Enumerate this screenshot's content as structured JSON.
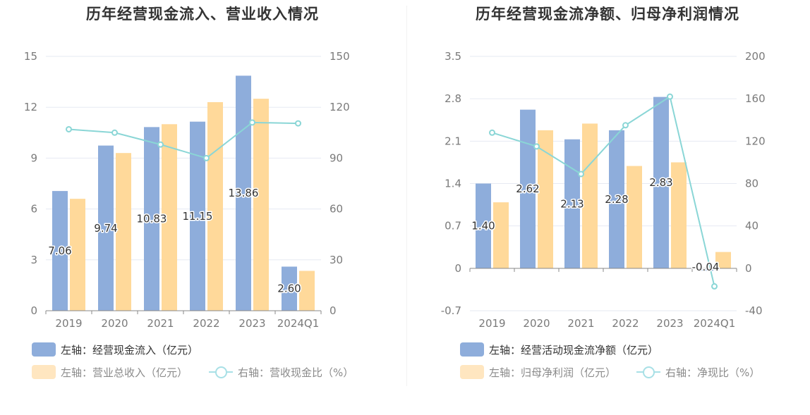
{
  "colors": {
    "bar1": "#8eaddb",
    "bar2": "#ffd99a",
    "bar2_legend": "#ffe6c0",
    "line": "#8ad6d6",
    "grid": "#e6eaf2",
    "axis": "#888888"
  },
  "chart_data": [
    {
      "type": "bar",
      "title": "历年经营现金流入、营业收入情况",
      "categories": [
        "2019",
        "2020",
        "2021",
        "2022",
        "2023",
        "2024Q1"
      ],
      "left_ticks": [
        "0",
        "3",
        "6",
        "9",
        "12",
        "15"
      ],
      "right_ticks": [
        "0",
        "30",
        "60",
        "90",
        "120",
        "150"
      ],
      "left_axis": {
        "min": 0,
        "max": 15
      },
      "right_axis": {
        "min": 0,
        "max": 150
      },
      "grid": true,
      "series": [
        {
          "name": "左轴：经营现金流入（亿元）",
          "axis": "left",
          "kind": "bar",
          "values": [
            7.06,
            9.74,
            10.83,
            11.15,
            13.86,
            2.6
          ],
          "labels": [
            "7.06",
            "9.74",
            "10.83",
            "11.15",
            "13.86",
            "2.60"
          ]
        },
        {
          "name": "左轴：营业总收入（亿元）",
          "axis": "left",
          "kind": "bar",
          "values": [
            6.6,
            9.3,
            11.0,
            12.3,
            12.5,
            2.35
          ]
        },
        {
          "name": "右轴：营收现金比（%）",
          "axis": "right",
          "kind": "line",
          "values": [
            107,
            105,
            98,
            90,
            111,
            110.5
          ]
        }
      ],
      "legend": [
        "左轴：经营现金流入（亿元）",
        "左轴：营业总收入（亿元）",
        "右轴：营收现金比（%）"
      ]
    },
    {
      "type": "bar",
      "title": "历年经营现金流净额、归母净利润情况",
      "categories": [
        "2019",
        "2020",
        "2021",
        "2022",
        "2023",
        "2024Q1"
      ],
      "left_ticks": [
        "-0.7",
        "0",
        "0.7",
        "1.4",
        "2.1",
        "2.8",
        "3.5"
      ],
      "right_ticks": [
        "-40",
        "0",
        "40",
        "80",
        "120",
        "160",
        "200"
      ],
      "left_axis": {
        "min": -0.7,
        "max": 3.5
      },
      "right_axis": {
        "min": -40,
        "max": 200
      },
      "grid": true,
      "series": [
        {
          "name": "左轴：经营活动现金流净额（亿元）",
          "axis": "left",
          "kind": "bar",
          "values": [
            1.4,
            2.62,
            2.13,
            2.28,
            2.83,
            -0.04
          ],
          "labels": [
            "1.40",
            "2.62",
            "2.13",
            "2.28",
            "2.83",
            "-0.04"
          ]
        },
        {
          "name": "左轴：归母净利润（亿元）",
          "axis": "left",
          "kind": "bar",
          "values": [
            1.09,
            2.28,
            2.39,
            1.69,
            1.75,
            0.27
          ]
        },
        {
          "name": "右轴：净现比（%）",
          "axis": "right",
          "kind": "line",
          "values": [
            128,
            115,
            89,
            135,
            162,
            -17
          ]
        }
      ],
      "legend": [
        "左轴：经营活动现金流净额（亿元）",
        "左轴：归母净利润（亿元）",
        "右轴：净现比（%）"
      ]
    }
  ]
}
